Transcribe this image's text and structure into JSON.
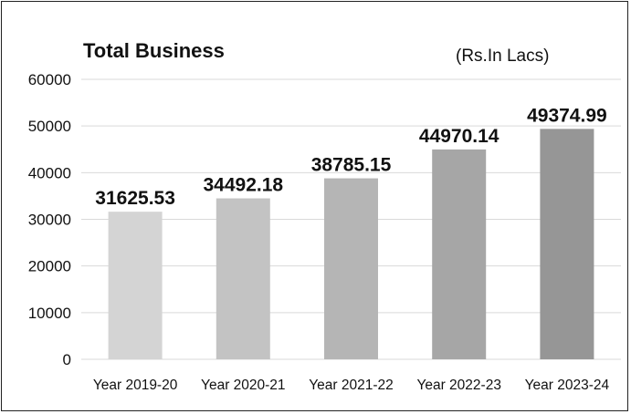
{
  "chart_data": {
    "type": "bar",
    "title": "Total Business",
    "unit_note": "(Rs.In Lacs)",
    "categories": [
      "Year 2019-20",
      "Year 2020-21",
      "Year 2021-22",
      "Year 2022-23",
      "Year 2023-24"
    ],
    "values": [
      31625.53,
      34492.18,
      38785.15,
      44970.14,
      49374.99
    ],
    "data_labels": [
      "31625.53",
      "34492.18",
      "38785.15",
      "44970.14",
      "49374.99"
    ],
    "ylim": [
      0,
      60000
    ],
    "yticks": [
      "0",
      "10000",
      "20000",
      "30000",
      "40000",
      "50000",
      "60000"
    ],
    "grid": true,
    "legend": "none",
    "bar_colors": [
      "#d4d4d4",
      "#c3c3c3",
      "#b5b5b5",
      "#a6a6a6",
      "#969696"
    ],
    "grid_color": "#d9d9d9"
  }
}
